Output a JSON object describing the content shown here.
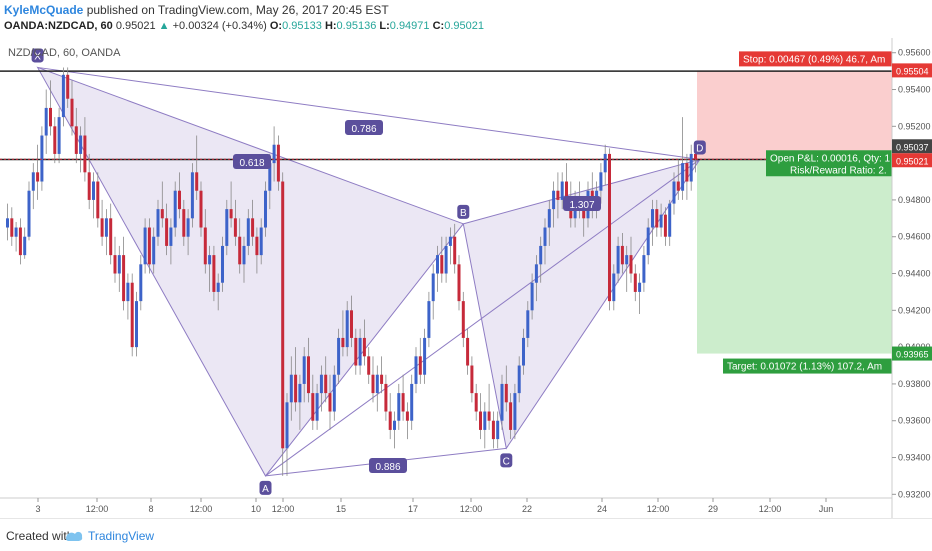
{
  "header": {
    "author": "KyleMcQuade",
    "published_text": "published on TradingView.com, May 26, 2017 20:45 EST",
    "symbol": "OANDA:NZDCAD, 60",
    "last": "0.95021",
    "change": "+0.00324 (+0.34%)",
    "o_label": "O:",
    "o_value": "0.95133",
    "h_label": "H:",
    "h_value": "0.95136",
    "l_label": "L:",
    "l_value": "0.94971",
    "c_label": "C:",
    "c_value": "0.95021"
  },
  "footer": {
    "created_with": "Created with",
    "brand": "TradingView"
  },
  "colors": {
    "up": "#3d63c9",
    "down": "#c62a3a",
    "pattern": "#8e7cc3",
    "stop_zone": "#f9c9c9",
    "target_zone": "#c7ebc7",
    "price_line": "#c62a3a"
  },
  "chart_data": {
    "type": "candlestick",
    "title": "NZD/CAD, 60, OANDA",
    "ylim": [
      0.9318,
      0.9568
    ],
    "y_ticks": [
      0.932,
      0.934,
      0.936,
      0.938,
      0.94,
      0.942,
      0.944,
      0.946,
      0.948,
      0.95,
      0.952,
      0.954,
      0.956
    ],
    "x_ticks": [
      "3",
      "12:00",
      "8",
      "12:00",
      "10",
      "12:00",
      "15",
      "17",
      "12:00",
      "22",
      "24",
      "12:00",
      "29",
      "12:00",
      "Jun"
    ],
    "pattern_points": [
      {
        "label": "X",
        "price": 0.9552
      },
      {
        "label": "A",
        "price": 0.933
      },
      {
        "label": "B",
        "price": 0.9467
      },
      {
        "label": "C",
        "price": 0.9345
      },
      {
        "label": "D",
        "price": 0.9502
      }
    ],
    "ratios": [
      {
        "label": "0.618"
      },
      {
        "label": "0.786"
      },
      {
        "label": "0.886"
      },
      {
        "label": "1.307"
      }
    ],
    "horizontal_lines": [
      0.955,
      0.9502
    ],
    "position": {
      "entry": 0.95021,
      "stop": 0.95504,
      "target": 0.93965,
      "stop_text": "Stop: 0.00467 (0.49%) 46.7, Am",
      "target_text": "Target: 0.01072 (1.13%) 107.2, Am",
      "pnl_text": "Open P&L: 0.00016, Qty: 1",
      "rr_text": "Risk/Reward Ratio: 2.",
      "stop_tag": "0.95504",
      "target_tag": "0.93965",
      "price_tag": "0.95021",
      "high_tag": "0.95037"
    },
    "candles": [
      [
        0.9465,
        0.9478,
        0.9458,
        0.947
      ],
      [
        0.947,
        0.9476,
        0.9455,
        0.946
      ],
      [
        0.946,
        0.9468,
        0.9452,
        0.9465
      ],
      [
        0.9465,
        0.947,
        0.9445,
        0.945
      ],
      [
        0.945,
        0.9465,
        0.9448,
        0.946
      ],
      [
        0.946,
        0.949,
        0.9458,
        0.9485
      ],
      [
        0.9485,
        0.95,
        0.9475,
        0.9495
      ],
      [
        0.9495,
        0.951,
        0.948,
        0.949
      ],
      [
        0.949,
        0.952,
        0.9485,
        0.9515
      ],
      [
        0.9515,
        0.954,
        0.9505,
        0.953
      ],
      [
        0.953,
        0.9545,
        0.9515,
        0.952
      ],
      [
        0.952,
        0.9525,
        0.95,
        0.9505
      ],
      [
        0.9505,
        0.953,
        0.95,
        0.9525
      ],
      [
        0.9525,
        0.9552,
        0.952,
        0.9548
      ],
      [
        0.9548,
        0.9552,
        0.953,
        0.9535
      ],
      [
        0.9535,
        0.9545,
        0.9515,
        0.952
      ],
      [
        0.952,
        0.953,
        0.95,
        0.9505
      ],
      [
        0.9505,
        0.952,
        0.9495,
        0.9515
      ],
      [
        0.9515,
        0.9525,
        0.949,
        0.9495
      ],
      [
        0.9495,
        0.9505,
        0.9475,
        0.948
      ],
      [
        0.948,
        0.9495,
        0.947,
        0.949
      ],
      [
        0.949,
        0.9495,
        0.9465,
        0.947
      ],
      [
        0.947,
        0.948,
        0.9455,
        0.946
      ],
      [
        0.946,
        0.9475,
        0.945,
        0.947
      ],
      [
        0.947,
        0.9478,
        0.9445,
        0.945
      ],
      [
        0.945,
        0.946,
        0.9435,
        0.944
      ],
      [
        0.944,
        0.9455,
        0.943,
        0.945
      ],
      [
        0.945,
        0.946,
        0.942,
        0.9425
      ],
      [
        0.9425,
        0.944,
        0.9415,
        0.9435
      ],
      [
        0.9435,
        0.944,
        0.9395,
        0.94
      ],
      [
        0.94,
        0.943,
        0.9395,
        0.9425
      ],
      [
        0.9425,
        0.945,
        0.942,
        0.9445
      ],
      [
        0.9445,
        0.947,
        0.944,
        0.9465
      ],
      [
        0.9465,
        0.947,
        0.944,
        0.9445
      ],
      [
        0.9445,
        0.9465,
        0.944,
        0.946
      ],
      [
        0.946,
        0.948,
        0.9455,
        0.9475
      ],
      [
        0.9475,
        0.949,
        0.9465,
        0.947
      ],
      [
        0.947,
        0.9478,
        0.945,
        0.9455
      ],
      [
        0.9455,
        0.947,
        0.9445,
        0.9465
      ],
      [
        0.9465,
        0.949,
        0.946,
        0.9485
      ],
      [
        0.9485,
        0.9495,
        0.947,
        0.9475
      ],
      [
        0.9475,
        0.948,
        0.9455,
        0.946
      ],
      [
        0.946,
        0.9475,
        0.945,
        0.947
      ],
      [
        0.947,
        0.95,
        0.9465,
        0.9495
      ],
      [
        0.9495,
        0.9515,
        0.948,
        0.9485
      ],
      [
        0.9485,
        0.949,
        0.946,
        0.9465
      ],
      [
        0.9465,
        0.9475,
        0.944,
        0.9445
      ],
      [
        0.9445,
        0.9455,
        0.943,
        0.945
      ],
      [
        0.945,
        0.9455,
        0.9425,
        0.943
      ],
      [
        0.943,
        0.944,
        0.942,
        0.9435
      ],
      [
        0.9435,
        0.946,
        0.943,
        0.9455
      ],
      [
        0.9455,
        0.948,
        0.945,
        0.9475
      ],
      [
        0.9475,
        0.949,
        0.9465,
        0.947
      ],
      [
        0.947,
        0.948,
        0.9455,
        0.946
      ],
      [
        0.946,
        0.947,
        0.944,
        0.9445
      ],
      [
        0.9445,
        0.946,
        0.9435,
        0.9455
      ],
      [
        0.9455,
        0.9475,
        0.945,
        0.947
      ],
      [
        0.947,
        0.948,
        0.9455,
        0.946
      ],
      [
        0.946,
        0.9465,
        0.944,
        0.945
      ],
      [
        0.945,
        0.947,
        0.9445,
        0.9465
      ],
      [
        0.9465,
        0.949,
        0.946,
        0.9485
      ],
      [
        0.9485,
        0.9505,
        0.9475,
        0.95
      ],
      [
        0.95,
        0.952,
        0.949,
        0.951
      ],
      [
        0.951,
        0.9515,
        0.9485,
        0.949
      ],
      [
        0.949,
        0.9495,
        0.933,
        0.9345
      ],
      [
        0.9345,
        0.9375,
        0.933,
        0.937
      ],
      [
        0.937,
        0.9395,
        0.936,
        0.9385
      ],
      [
        0.9385,
        0.94,
        0.9365,
        0.937
      ],
      [
        0.937,
        0.9385,
        0.9355,
        0.938
      ],
      [
        0.938,
        0.94,
        0.937,
        0.9395
      ],
      [
        0.9395,
        0.9405,
        0.937,
        0.9375
      ],
      [
        0.9375,
        0.9385,
        0.9355,
        0.936
      ],
      [
        0.936,
        0.938,
        0.9355,
        0.9375
      ],
      [
        0.9375,
        0.939,
        0.9365,
        0.9385
      ],
      [
        0.9385,
        0.9395,
        0.937,
        0.9375
      ],
      [
        0.9375,
        0.9385,
        0.9355,
        0.9365
      ],
      [
        0.9365,
        0.939,
        0.936,
        0.9385
      ],
      [
        0.9385,
        0.941,
        0.938,
        0.9405
      ],
      [
        0.9405,
        0.942,
        0.9395,
        0.94
      ],
      [
        0.94,
        0.9425,
        0.9395,
        0.942
      ],
      [
        0.942,
        0.9428,
        0.94,
        0.9405
      ],
      [
        0.9405,
        0.941,
        0.9385,
        0.939
      ],
      [
        0.939,
        0.941,
        0.9385,
        0.9405
      ],
      [
        0.9405,
        0.9415,
        0.939,
        0.9395
      ],
      [
        0.9395,
        0.94,
        0.938,
        0.9385
      ],
      [
        0.9385,
        0.9395,
        0.937,
        0.9375
      ],
      [
        0.9375,
        0.939,
        0.9365,
        0.9385
      ],
      [
        0.9385,
        0.9395,
        0.9375,
        0.938
      ],
      [
        0.938,
        0.9385,
        0.936,
        0.9365
      ],
      [
        0.9365,
        0.9375,
        0.935,
        0.9355
      ],
      [
        0.9355,
        0.9365,
        0.9345,
        0.936
      ],
      [
        0.936,
        0.938,
        0.9355,
        0.9375
      ],
      [
        0.9375,
        0.9385,
        0.936,
        0.9365
      ],
      [
        0.9365,
        0.937,
        0.935,
        0.936
      ],
      [
        0.936,
        0.9385,
        0.9355,
        0.938
      ],
      [
        0.938,
        0.94,
        0.9375,
        0.9395
      ],
      [
        0.9395,
        0.9405,
        0.938,
        0.9385
      ],
      [
        0.9385,
        0.941,
        0.938,
        0.9405
      ],
      [
        0.9405,
        0.943,
        0.94,
        0.9425
      ],
      [
        0.9425,
        0.9445,
        0.9415,
        0.944
      ],
      [
        0.944,
        0.9455,
        0.943,
        0.945
      ],
      [
        0.945,
        0.946,
        0.9435,
        0.944
      ],
      [
        0.944,
        0.946,
        0.9435,
        0.9455
      ],
      [
        0.9455,
        0.9465,
        0.9445,
        0.946
      ],
      [
        0.946,
        0.9467,
        0.944,
        0.9445
      ],
      [
        0.9445,
        0.945,
        0.942,
        0.9425
      ],
      [
        0.9425,
        0.943,
        0.94,
        0.9405
      ],
      [
        0.9405,
        0.941,
        0.9385,
        0.939
      ],
      [
        0.939,
        0.9395,
        0.937,
        0.9375
      ],
      [
        0.9375,
        0.938,
        0.936,
        0.9365
      ],
      [
        0.9365,
        0.9375,
        0.935,
        0.9355
      ],
      [
        0.9355,
        0.937,
        0.9345,
        0.9365
      ],
      [
        0.9365,
        0.938,
        0.9355,
        0.936
      ],
      [
        0.936,
        0.9365,
        0.9345,
        0.935
      ],
      [
        0.935,
        0.9365,
        0.9345,
        0.936
      ],
      [
        0.936,
        0.9385,
        0.9355,
        0.938
      ],
      [
        0.938,
        0.939,
        0.9365,
        0.937
      ],
      [
        0.937,
        0.9375,
        0.935,
        0.9355
      ],
      [
        0.9355,
        0.938,
        0.935,
        0.9375
      ],
      [
        0.9375,
        0.9395,
        0.937,
        0.939
      ],
      [
        0.939,
        0.941,
        0.9385,
        0.9405
      ],
      [
        0.9405,
        0.9425,
        0.94,
        0.942
      ],
      [
        0.942,
        0.944,
        0.9415,
        0.9435
      ],
      [
        0.9435,
        0.945,
        0.9425,
        0.9445
      ],
      [
        0.9445,
        0.946,
        0.9435,
        0.9455
      ],
      [
        0.9455,
        0.947,
        0.9445,
        0.9465
      ],
      [
        0.9465,
        0.948,
        0.9455,
        0.9475
      ],
      [
        0.9475,
        0.949,
        0.9465,
        0.9485
      ],
      [
        0.9485,
        0.9495,
        0.947,
        0.948
      ],
      [
        0.948,
        0.9495,
        0.9475,
        0.949
      ],
      [
        0.949,
        0.95,
        0.9475,
        0.948
      ],
      [
        0.948,
        0.949,
        0.9465,
        0.947
      ],
      [
        0.947,
        0.9485,
        0.9465,
        0.948
      ],
      [
        0.948,
        0.949,
        0.947,
        0.9475
      ],
      [
        0.9475,
        0.948,
        0.946,
        0.947
      ],
      [
        0.947,
        0.949,
        0.9465,
        0.9485
      ],
      [
        0.9485,
        0.9495,
        0.947,
        0.9478
      ],
      [
        0.9478,
        0.949,
        0.947,
        0.9485
      ],
      [
        0.9485,
        0.95,
        0.9478,
        0.9495
      ],
      [
        0.9495,
        0.951,
        0.9488,
        0.9505
      ],
      [
        0.9505,
        0.9508,
        0.942,
        0.9425
      ],
      [
        0.9425,
        0.9445,
        0.942,
        0.944
      ],
      [
        0.944,
        0.946,
        0.9435,
        0.9455
      ],
      [
        0.9455,
        0.9462,
        0.944,
        0.9445
      ],
      [
        0.9445,
        0.9455,
        0.943,
        0.945
      ],
      [
        0.945,
        0.946,
        0.9435,
        0.944
      ],
      [
        0.944,
        0.9445,
        0.9425,
        0.943
      ],
      [
        0.943,
        0.944,
        0.9418,
        0.9435
      ],
      [
        0.9435,
        0.9455,
        0.943,
        0.945
      ],
      [
        0.945,
        0.947,
        0.9445,
        0.9465
      ],
      [
        0.9465,
        0.948,
        0.9455,
        0.9475
      ],
      [
        0.9475,
        0.948,
        0.946,
        0.9465
      ],
      [
        0.9465,
        0.9478,
        0.946,
        0.9472
      ],
      [
        0.9472,
        0.9476,
        0.9455,
        0.946
      ],
      [
        0.946,
        0.948,
        0.9455,
        0.9478
      ],
      [
        0.9478,
        0.9495,
        0.9472,
        0.949
      ],
      [
        0.949,
        0.9502,
        0.948,
        0.9485
      ],
      [
        0.9485,
        0.9525,
        0.948,
        0.95
      ],
      [
        0.95,
        0.9505,
        0.948,
        0.949
      ],
      [
        0.949,
        0.951,
        0.9485,
        0.9505
      ],
      [
        0.9505,
        0.9508,
        0.9495,
        0.9502
      ]
    ]
  }
}
